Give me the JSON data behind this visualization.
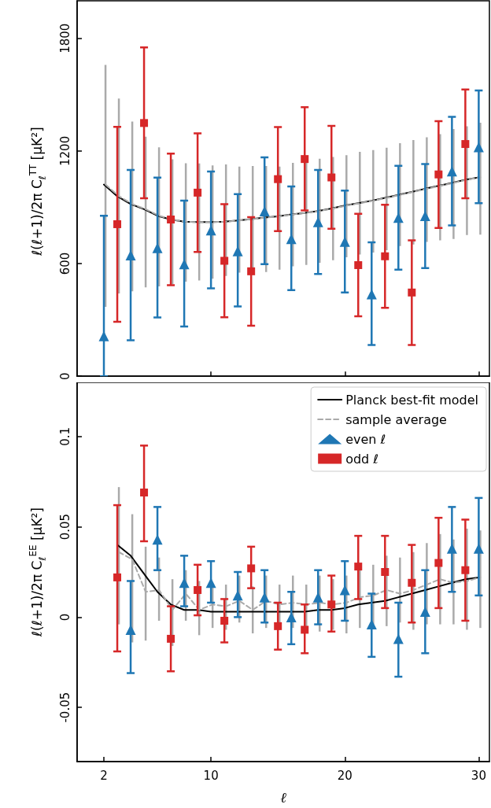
{
  "chart_data": [
    {
      "type": "scatter",
      "ylabel": "ℓ(ℓ+1)/2π C$_{ℓ}$$^{TT}$ [μK²]",
      "xlim": [
        0,
        30.8
      ],
      "xticks": [
        2,
        10,
        20,
        30
      ],
      "ylim": [
        0,
        2000
      ],
      "yticks": [
        0,
        600,
        1200,
        1800
      ],
      "tick_labels": "y",
      "series": [
        {
          "type": "line",
          "color": "#000000",
          "line_style": "solid",
          "marker": "none",
          "x": [
            2,
            3,
            4,
            5,
            6,
            7,
            8,
            9,
            10,
            11,
            12,
            13,
            14,
            15,
            16,
            17,
            18,
            19,
            20,
            21,
            22,
            23,
            24,
            25,
            26,
            27,
            28,
            29,
            30
          ],
          "values": [
            1021,
            959,
            917,
            890,
            855,
            835,
            823,
            821,
            821,
            823,
            830,
            837,
            845,
            852,
            862,
            870,
            880,
            894,
            909,
            922,
            935,
            950,
            966,
            982,
            999,
            1014,
            1030,
            1047,
            1059
          ]
        },
        {
          "type": "line",
          "color": "#aaaaaa",
          "line_style": "dashed",
          "marker": "none",
          "x": [
            2.12,
            3.12,
            4.12,
            5.12,
            6.12,
            7.12,
            8.12,
            9.12,
            10.12,
            11.12,
            12.12,
            13.12,
            14.12,
            15.12,
            16.12,
            17.12,
            18.12,
            19.12,
            20.12,
            21.12,
            22.12,
            23.12,
            24.12,
            25.12,
            26.12,
            27.12,
            28.12,
            29.12,
            30.12
          ],
          "values": [
            1021,
            959,
            917,
            890,
            855,
            835,
            823,
            821,
            821,
            823,
            830,
            837,
            845,
            852,
            862,
            870,
            880,
            894,
            909,
            922,
            935,
            950,
            966,
            982,
            999,
            1014,
            1030,
            1047,
            1059
          ],
          "errors": [
            [
              370,
              1658
            ],
            [
              441,
              1479
            ],
            [
              452,
              1357
            ],
            [
              473,
              1276
            ],
            [
              479,
              1219
            ],
            [
              490,
              1156
            ],
            [
              504,
              1135
            ],
            [
              510,
              1134
            ],
            [
              520,
              1123
            ],
            [
              534,
              1128
            ],
            [
              552,
              1117
            ],
            [
              568,
              1120
            ],
            [
              555,
              1120
            ],
            [
              568,
              1117
            ],
            [
              586,
              1137
            ],
            [
              593,
              1145
            ],
            [
              604,
              1159
            ],
            [
              618,
              1168
            ],
            [
              634,
              1178
            ],
            [
              648,
              1195
            ],
            [
              659,
              1205
            ],
            [
              672,
              1217
            ],
            [
              694,
              1241
            ],
            [
              702,
              1258
            ],
            [
              716,
              1273
            ],
            [
              724,
              1290
            ],
            [
              731,
              1317
            ],
            [
              752,
              1332
            ],
            [
              754,
              1350
            ]
          ]
        },
        {
          "color": "#1f77b4",
          "marker": "triangle",
          "x": [
            2,
            4,
            6,
            8,
            10,
            12,
            14,
            16,
            18,
            20,
            22,
            24,
            26,
            28,
            30
          ],
          "values": [
            214,
            644,
            683,
            597,
            777,
            666,
            879,
            731,
            821,
            717,
            437,
            844,
            854,
            1092,
            1221
          ],
          "errors": [
            [
              0,
              855
            ],
            [
              192,
              1099
            ],
            [
              313,
              1058
            ],
            [
              265,
              935
            ],
            [
              468,
              1091
            ],
            [
              372,
              970
            ],
            [
              597,
              1166
            ],
            [
              459,
              1011
            ],
            [
              545,
              1099
            ],
            [
              446,
              989
            ],
            [
              166,
              713
            ],
            [
              568,
              1121
            ],
            [
              576,
              1130
            ],
            [
              803,
              1382
            ],
            [
              922,
              1522
            ]
          ]
        },
        {
          "color": "#d62728",
          "marker": "square",
          "x": [
            3,
            5,
            7,
            9,
            11,
            13,
            15,
            17,
            19,
            21,
            23,
            25,
            27,
            29
          ],
          "values": [
            810,
            1349,
            835,
            978,
            615,
            559,
            1050,
            1157,
            1059,
            592,
            639,
            446,
            1075,
            1237
          ],
          "errors": [
            [
              290,
              1328
            ],
            [
              948,
              1752
            ],
            [
              485,
              1186
            ],
            [
              662,
              1294
            ],
            [
              314,
              917
            ],
            [
              269,
              848
            ],
            [
              773,
              1327
            ],
            [
              883,
              1433
            ],
            [
              786,
              1334
            ],
            [
              319,
              865
            ],
            [
              364,
              913
            ],
            [
              166,
              724
            ],
            [
              790,
              1359
            ],
            [
              948,
              1528
            ]
          ]
        }
      ]
    },
    {
      "type": "scatter",
      "xlabel": "ℓ",
      "ylabel": "ℓ(ℓ+1)/2π C$_{ℓ}$$^{EE}$ [μK²]",
      "xlim": [
        0,
        30.8
      ],
      "xticks": [
        2,
        10,
        20,
        30
      ],
      "ylim": [
        -0.08,
        0.13
      ],
      "yticks": [
        -0.05,
        0,
        0.05,
        0.1
      ],
      "legend": "top right",
      "series": [
        {
          "type": "line",
          "name": "Planck best-fit model",
          "color": "#000000",
          "line_style": "solid",
          "marker": "none",
          "x": [
            3,
            4,
            5,
            6,
            7,
            8,
            9,
            10,
            11,
            12,
            13,
            14,
            15,
            16,
            17,
            18,
            19,
            20,
            21,
            22,
            23,
            24,
            25,
            26,
            27,
            28,
            29,
            30
          ],
          "values": [
            0.04,
            0.034,
            0.024,
            0.014,
            0.007,
            0.004,
            0.004,
            0.003,
            0.003,
            0.003,
            0.003,
            0.003,
            0.003,
            0.003,
            0.003,
            0.004,
            0.004,
            0.005,
            0.007,
            0.008,
            0.009,
            0.011,
            0.013,
            0.015,
            0.017,
            0.019,
            0.021,
            0.022
          ]
        },
        {
          "type": "line",
          "name": "sample average",
          "color": "#aaaaaa",
          "line_style": "dashed",
          "marker": "none",
          "x": [
            3.12,
            4.12,
            5.12,
            6.12,
            7.12,
            8.12,
            9.12,
            10.12,
            11.12,
            12.12,
            13.12,
            14.12,
            15.12,
            16.12,
            17.12,
            18.12,
            19.12,
            20.12,
            21.12,
            22.12,
            23.12,
            24.12,
            25.12,
            26.12,
            27.12,
            28.12,
            29.12,
            30.12
          ],
          "values": [
            0.036,
            0.032,
            0.014,
            0.015,
            0.004,
            0.013,
            0.004,
            0.007,
            0.006,
            0.009,
            0.004,
            0.009,
            0.007,
            0.008,
            0.007,
            0.008,
            0.007,
            0.008,
            0.011,
            0.012,
            0.015,
            0.013,
            0.015,
            0.018,
            0.021,
            0.019,
            0.02,
            0.022
          ],
          "errors": [
            [
              -0.004,
              0.072
            ],
            [
              -0.014,
              0.057
            ],
            [
              -0.013,
              0.039
            ],
            [
              -0.002,
              0.033
            ],
            [
              -0.016,
              0.021
            ],
            [
              -0.002,
              0.026
            ],
            [
              -0.01,
              0.02
            ],
            [
              -0.006,
              0.018
            ],
            [
              -0.007,
              0.018
            ],
            [
              -0.003,
              0.023
            ],
            [
              -0.009,
              0.017
            ],
            [
              -0.006,
              0.023
            ],
            [
              -0.007,
              0.018
            ],
            [
              -0.006,
              0.023
            ],
            [
              -0.007,
              0.018
            ],
            [
              -0.008,
              0.023
            ],
            [
              -0.007,
              0.021
            ],
            [
              -0.009,
              0.023
            ],
            [
              -0.006,
              0.029
            ],
            [
              -0.004,
              0.029
            ],
            [
              -0.005,
              0.034
            ],
            [
              -0.003,
              0.033
            ],
            [
              -0.007,
              0.036
            ],
            [
              -0.004,
              0.041
            ],
            [
              -0.004,
              0.046
            ],
            [
              -0.004,
              0.043
            ],
            [
              -0.007,
              0.049
            ],
            [
              -0.006,
              0.048
            ]
          ]
        },
        {
          "name": "even ℓ",
          "color": "#1f77b4",
          "marker": "triangle",
          "x": [
            4,
            6,
            8,
            10,
            12,
            14,
            16,
            18,
            20,
            22,
            24,
            26,
            28,
            30
          ],
          "values": [
            -0.007,
            0.043,
            0.019,
            0.019,
            0.012,
            0.011,
            0.0,
            0.011,
            0.015,
            -0.004,
            -0.012,
            0.003,
            0.038,
            0.038
          ],
          "errors": [
            [
              -0.031,
              0.02
            ],
            [
              0.026,
              0.061
            ],
            [
              0.006,
              0.034
            ],
            [
              0.008,
              0.031
            ],
            [
              0.0,
              0.025
            ],
            [
              -0.003,
              0.026
            ],
            [
              -0.015,
              0.014
            ],
            [
              -0.004,
              0.026
            ],
            [
              -0.002,
              0.031
            ],
            [
              -0.022,
              0.013
            ],
            [
              -0.033,
              0.008
            ],
            [
              -0.02,
              0.026
            ],
            [
              0.014,
              0.061
            ],
            [
              0.012,
              0.066
            ]
          ]
        },
        {
          "name": "odd ℓ",
          "color": "#d62728",
          "marker": "square",
          "x": [
            3,
            5,
            7,
            9,
            11,
            13,
            15,
            17,
            19,
            21,
            23,
            25,
            27,
            29
          ],
          "values": [
            0.022,
            0.069,
            -0.012,
            0.015,
            -0.002,
            0.027,
            -0.005,
            -0.007,
            0.007,
            0.028,
            0.025,
            0.019,
            0.03,
            0.026
          ],
          "errors": [
            [
              -0.019,
              0.062
            ],
            [
              0.042,
              0.095
            ],
            [
              -0.03,
              0.006
            ],
            [
              0.001,
              0.029
            ],
            [
              -0.014,
              0.01
            ],
            [
              0.016,
              0.039
            ],
            [
              -0.018,
              0.008
            ],
            [
              -0.02,
              0.007
            ],
            [
              -0.008,
              0.023
            ],
            [
              0.01,
              0.045
            ],
            [
              0.005,
              0.045
            ],
            [
              -0.003,
              0.04
            ],
            [
              0.005,
              0.055
            ],
            [
              -0.002,
              0.054
            ]
          ]
        }
      ]
    }
  ]
}
